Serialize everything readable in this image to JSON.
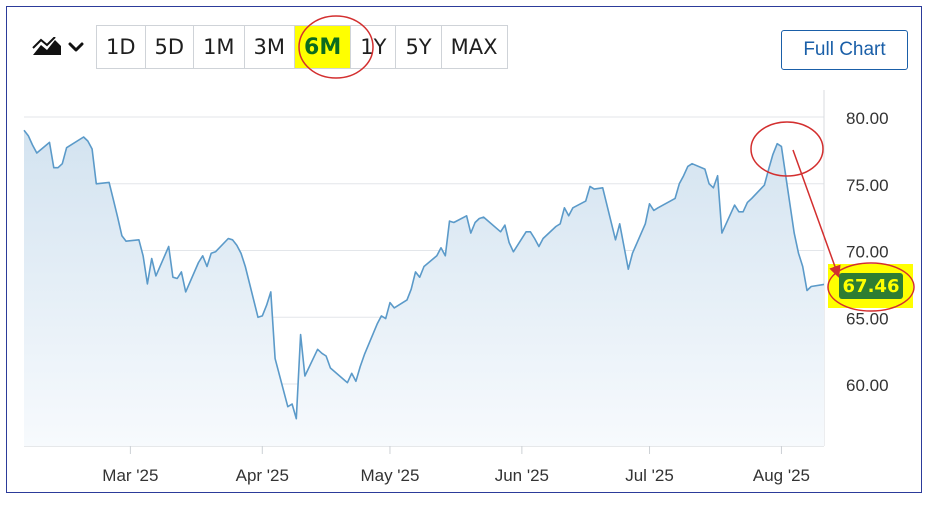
{
  "toolbar": {
    "chart_type_icon": "area-chart-icon",
    "ranges": [
      {
        "label": "1D",
        "active": false
      },
      {
        "label": "5D",
        "active": false
      },
      {
        "label": "1M",
        "active": false
      },
      {
        "label": "3M",
        "active": false
      },
      {
        "label": "6M",
        "active": true
      },
      {
        "label": "1Y",
        "active": false
      },
      {
        "label": "5Y",
        "active": false
      },
      {
        "label": "MAX",
        "active": false
      }
    ],
    "full_chart_label": "Full Chart"
  },
  "price_label": "67.46",
  "colors": {
    "line": "#5b9ac9",
    "fill": "#dde9f3",
    "highlight": "#ffff00",
    "annotation": "#d32f2f",
    "price_badge": "#2e7d32",
    "button_border": "#1a5fa8"
  },
  "chart_data": {
    "type": "area",
    "title": "",
    "xlabel": "",
    "ylabel": "",
    "ylim": [
      55.5,
      81
    ],
    "yticks": [
      80,
      75,
      70,
      65,
      60
    ],
    "ytick_labels": [
      "80.00",
      "75.00",
      "70.00",
      "65.00",
      "60.00"
    ],
    "x_ticks": [
      {
        "date": "2025-03-01",
        "label": "Mar '25"
      },
      {
        "date": "2025-04-01",
        "label": "Apr '25"
      },
      {
        "date": "2025-05-01",
        "label": "May '25"
      },
      {
        "date": "2025-06-01",
        "label": "Jun '25"
      },
      {
        "date": "2025-07-01",
        "label": "Jul '25"
      },
      {
        "date": "2025-08-01",
        "label": "Aug '25"
      }
    ],
    "x_range": [
      "2025-02-04",
      "2025-08-11"
    ],
    "grid": true,
    "last_value": 67.46,
    "series": [
      {
        "points": [
          [
            "2025-02-04",
            79.0
          ],
          [
            "2025-02-05",
            78.6
          ],
          [
            "2025-02-06",
            77.9
          ],
          [
            "2025-02-07",
            77.3
          ],
          [
            "2025-02-10",
            78.1
          ],
          [
            "2025-02-11",
            76.2
          ],
          [
            "2025-02-12",
            76.2
          ],
          [
            "2025-02-13",
            76.5
          ],
          [
            "2025-02-14",
            77.7
          ],
          [
            "2025-02-18",
            78.5
          ],
          [
            "2025-02-19",
            78.2
          ],
          [
            "2025-02-20",
            77.6
          ],
          [
            "2025-02-21",
            75.0
          ],
          [
            "2025-02-24",
            75.1
          ],
          [
            "2025-02-25",
            73.8
          ],
          [
            "2025-02-26",
            72.5
          ],
          [
            "2025-02-27",
            71.1
          ],
          [
            "2025-02-28",
            70.7
          ],
          [
            "2025-03-03",
            70.8
          ],
          [
            "2025-03-04",
            69.6
          ],
          [
            "2025-03-05",
            67.5
          ],
          [
            "2025-03-06",
            69.4
          ],
          [
            "2025-03-07",
            68.1
          ],
          [
            "2025-03-10",
            70.3
          ],
          [
            "2025-03-11",
            68.0
          ],
          [
            "2025-03-12",
            67.9
          ],
          [
            "2025-03-13",
            68.4
          ],
          [
            "2025-03-14",
            66.9
          ],
          [
            "2025-03-17",
            69.1
          ],
          [
            "2025-03-18",
            69.6
          ],
          [
            "2025-03-19",
            68.8
          ],
          [
            "2025-03-20",
            69.8
          ],
          [
            "2025-03-21",
            69.9
          ],
          [
            "2025-03-24",
            70.9
          ],
          [
            "2025-03-25",
            70.8
          ],
          [
            "2025-03-26",
            70.4
          ],
          [
            "2025-03-27",
            69.8
          ],
          [
            "2025-03-28",
            68.8
          ],
          [
            "2025-03-31",
            65.0
          ],
          [
            "2025-04-01",
            65.1
          ],
          [
            "2025-04-02",
            65.9
          ],
          [
            "2025-04-03",
            66.9
          ],
          [
            "2025-04-04",
            61.9
          ],
          [
            "2025-04-07",
            58.3
          ],
          [
            "2025-04-08",
            58.5
          ],
          [
            "2025-04-09",
            57.4
          ],
          [
            "2025-04-10",
            63.7
          ],
          [
            "2025-04-11",
            60.6
          ],
          [
            "2025-04-14",
            62.6
          ],
          [
            "2025-04-15",
            62.3
          ],
          [
            "2025-04-16",
            62.1
          ],
          [
            "2025-04-17",
            61.2
          ],
          [
            "2025-04-21",
            60.1
          ],
          [
            "2025-04-22",
            60.8
          ],
          [
            "2025-04-23",
            60.2
          ],
          [
            "2025-04-24",
            61.3
          ],
          [
            "2025-04-25",
            62.2
          ],
          [
            "2025-04-28",
            64.5
          ],
          [
            "2025-04-29",
            65.1
          ],
          [
            "2025-04-30",
            64.9
          ],
          [
            "2025-05-01",
            66.1
          ],
          [
            "2025-05-02",
            65.7
          ],
          [
            "2025-05-05",
            66.3
          ],
          [
            "2025-05-06",
            67.1
          ],
          [
            "2025-05-07",
            68.4
          ],
          [
            "2025-05-08",
            68.0
          ],
          [
            "2025-05-09",
            68.8
          ],
          [
            "2025-05-12",
            69.6
          ],
          [
            "2025-05-13",
            70.2
          ],
          [
            "2025-05-14",
            69.6
          ],
          [
            "2025-05-15",
            72.2
          ],
          [
            "2025-05-16",
            72.1
          ],
          [
            "2025-05-19",
            72.6
          ],
          [
            "2025-05-20",
            71.3
          ],
          [
            "2025-05-21",
            72.1
          ],
          [
            "2025-05-22",
            72.4
          ],
          [
            "2025-05-23",
            72.5
          ],
          [
            "2025-05-27",
            71.4
          ],
          [
            "2025-05-28",
            71.9
          ],
          [
            "2025-05-29",
            70.6
          ],
          [
            "2025-05-30",
            69.9
          ],
          [
            "2025-06-02",
            71.4
          ],
          [
            "2025-06-03",
            71.4
          ],
          [
            "2025-06-04",
            70.9
          ],
          [
            "2025-06-05",
            70.3
          ],
          [
            "2025-06-06",
            70.9
          ],
          [
            "2025-06-09",
            71.8
          ],
          [
            "2025-06-10",
            72.0
          ],
          [
            "2025-06-11",
            73.2
          ],
          [
            "2025-06-12",
            72.6
          ],
          [
            "2025-06-13",
            73.2
          ],
          [
            "2025-06-16",
            73.7
          ],
          [
            "2025-06-17",
            74.8
          ],
          [
            "2025-06-18",
            74.6
          ],
          [
            "2025-06-20",
            74.7
          ],
          [
            "2025-06-23",
            70.8
          ],
          [
            "2025-06-24",
            72.0
          ],
          [
            "2025-06-25",
            70.3
          ],
          [
            "2025-06-26",
            68.6
          ],
          [
            "2025-06-27",
            69.8
          ],
          [
            "2025-06-30",
            72.0
          ],
          [
            "2025-07-01",
            73.5
          ],
          [
            "2025-07-02",
            73.0
          ],
          [
            "2025-07-03",
            73.2
          ],
          [
            "2025-07-07",
            73.9
          ],
          [
            "2025-07-08",
            75.0
          ],
          [
            "2025-07-09",
            75.6
          ],
          [
            "2025-07-10",
            76.3
          ],
          [
            "2025-07-11",
            76.5
          ],
          [
            "2025-07-14",
            76.1
          ],
          [
            "2025-07-15",
            75.0
          ],
          [
            "2025-07-16",
            74.7
          ],
          [
            "2025-07-17",
            75.6
          ],
          [
            "2025-07-18",
            71.3
          ],
          [
            "2025-07-21",
            73.4
          ],
          [
            "2025-07-22",
            72.9
          ],
          [
            "2025-07-23",
            72.9
          ],
          [
            "2025-07-24",
            73.6
          ],
          [
            "2025-07-25",
            73.9
          ],
          [
            "2025-07-28",
            74.9
          ],
          [
            "2025-07-29",
            76.1
          ],
          [
            "2025-07-30",
            77.2
          ],
          [
            "2025-07-31",
            78.0
          ],
          [
            "2025-08-01",
            77.8
          ],
          [
            "2025-08-04",
            71.3
          ],
          [
            "2025-08-05",
            69.8
          ],
          [
            "2025-08-06",
            68.8
          ],
          [
            "2025-08-07",
            67.0
          ],
          [
            "2025-08-08",
            67.3
          ],
          [
            "2025-08-11",
            67.46
          ]
        ]
      }
    ]
  }
}
